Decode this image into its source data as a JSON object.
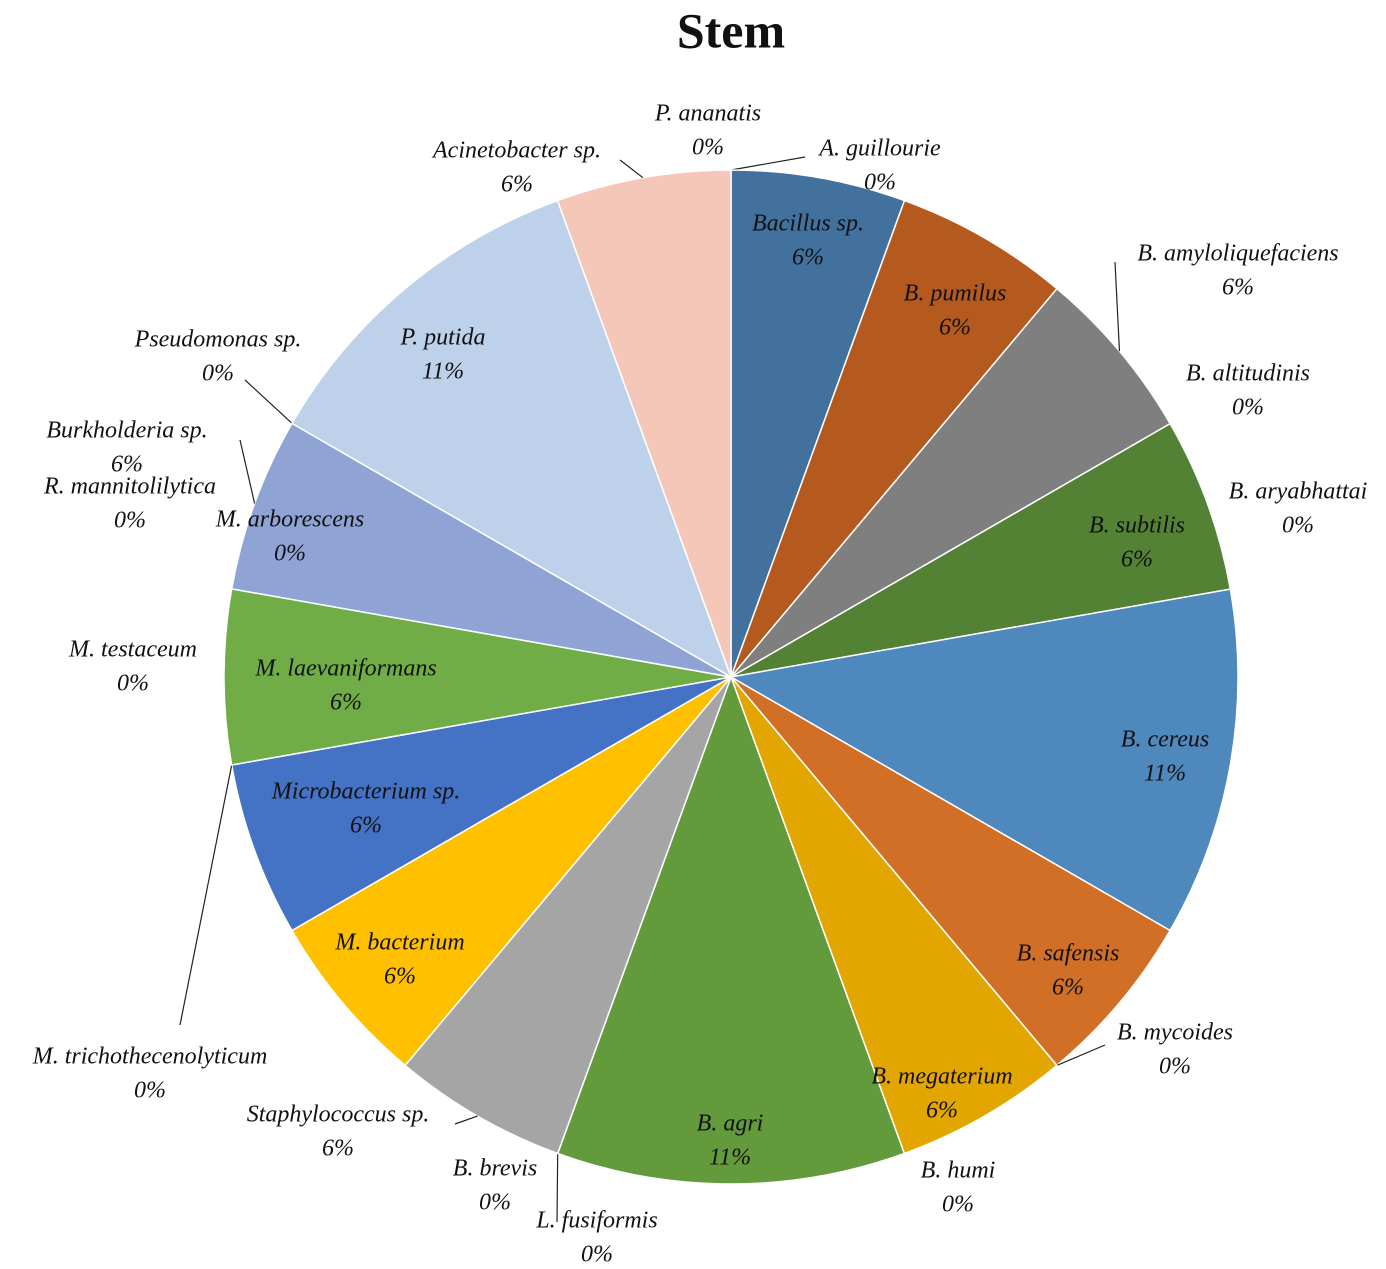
{
  "chart_data": {
    "type": "pie",
    "title": "Stem",
    "categories": [
      "A. guillourie",
      "Bacillus sp.",
      "B. pumilus",
      "B. amyloliquefaciens",
      "B. altitudinis",
      "B. subtilis",
      "B. aryabhattai",
      "B. cereus",
      "B. safensis",
      "B. mycoides",
      "B. megaterium",
      "B. humi",
      "B. agri",
      "L. fusiformis",
      "B. brevis",
      "Staphylococcus sp.",
      "M. bacterium",
      "Microbacterium sp.",
      "M. trichothecenolyticum",
      "M. laevaniformans",
      "M. testaceum",
      "R. mannitolilytica",
      "Burkholderia sp.",
      "M. arborescens",
      "Pseudomonas sp.",
      "P. putida",
      "Acinetobacter sp.",
      "P. ananatis"
    ],
    "values": [
      0,
      5.56,
      5.56,
      5.56,
      0,
      5.56,
      0,
      11.11,
      5.56,
      0,
      5.56,
      0,
      11.11,
      0,
      0,
      5.56,
      5.56,
      5.56,
      0,
      5.56,
      0,
      0,
      5.56,
      0,
      0,
      11.11,
      5.56,
      0
    ],
    "value_labels": [
      "0%",
      "6%",
      "6%",
      "6%",
      "0%",
      "6%",
      "0%",
      "11%",
      "6%",
      "0%",
      "6%",
      "0%",
      "11%",
      "0%",
      "0%",
      "6%",
      "6%",
      "6%",
      "0%",
      "6%",
      "0%",
      "0%",
      "6%",
      "0%",
      "0%",
      "11%",
      "6%",
      "0%"
    ],
    "colors": [
      "#264478",
      "#41719c",
      "#b55a1f",
      "#7f7f7f",
      "#997300",
      "#548235",
      "#636363",
      "#4e88bd",
      "#d26f27",
      "#9e480e",
      "#e3a600",
      "#255e91",
      "#629a3c",
      "#43682b",
      "#698ed0",
      "#a5a5a5",
      "#ffc000",
      "#4472c4",
      "#f1975a",
      "#70ad47",
      "#b7b7b7",
      "#ffcd33",
      "#8fa4d4",
      "#8cc168",
      "#9dc3e6",
      "#bdd1ea",
      "#f4c7b8",
      "#a9d18e"
    ]
  }
}
